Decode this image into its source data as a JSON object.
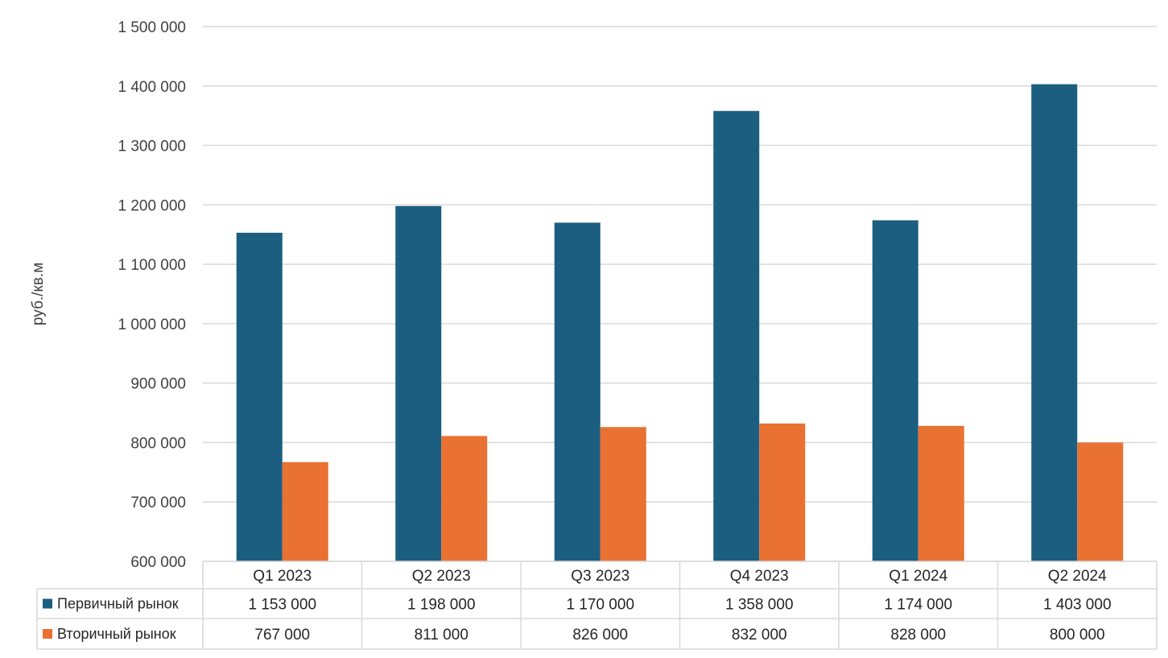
{
  "chart_data": {
    "type": "bar",
    "ylabel": "руб./кв.м",
    "ylim": [
      600000,
      1500000
    ],
    "yticks": [
      "600 000",
      "700 000",
      "800 000",
      "900 000",
      "1 000 000",
      "1 100 000",
      "1 200 000",
      "1 300 000",
      "1 400 000",
      "1 500 000"
    ],
    "grid": true,
    "legend": "data-table",
    "categories": [
      "Q1 2023",
      "Q2 2023",
      "Q3 2023",
      "Q4 2023",
      "Q1 2024",
      "Q2 2024"
    ],
    "series": [
      {
        "name": "Первичный рынок",
        "color": "#1b5e80",
        "values": [
          1153000,
          1198000,
          1170000,
          1358000,
          1174000,
          1403000
        ],
        "labels": [
          "1 153 000",
          "1 198 000",
          "1 170 000",
          "1 358 000",
          "1 174 000",
          "1 403 000"
        ]
      },
      {
        "name": "Вторичный рынок",
        "color": "#e97132",
        "values": [
          767000,
          811000,
          826000,
          832000,
          828000,
          800000
        ],
        "labels": [
          "767 000",
          "811 000",
          "826 000",
          "832 000",
          "828 000",
          "800 000"
        ]
      }
    ]
  }
}
